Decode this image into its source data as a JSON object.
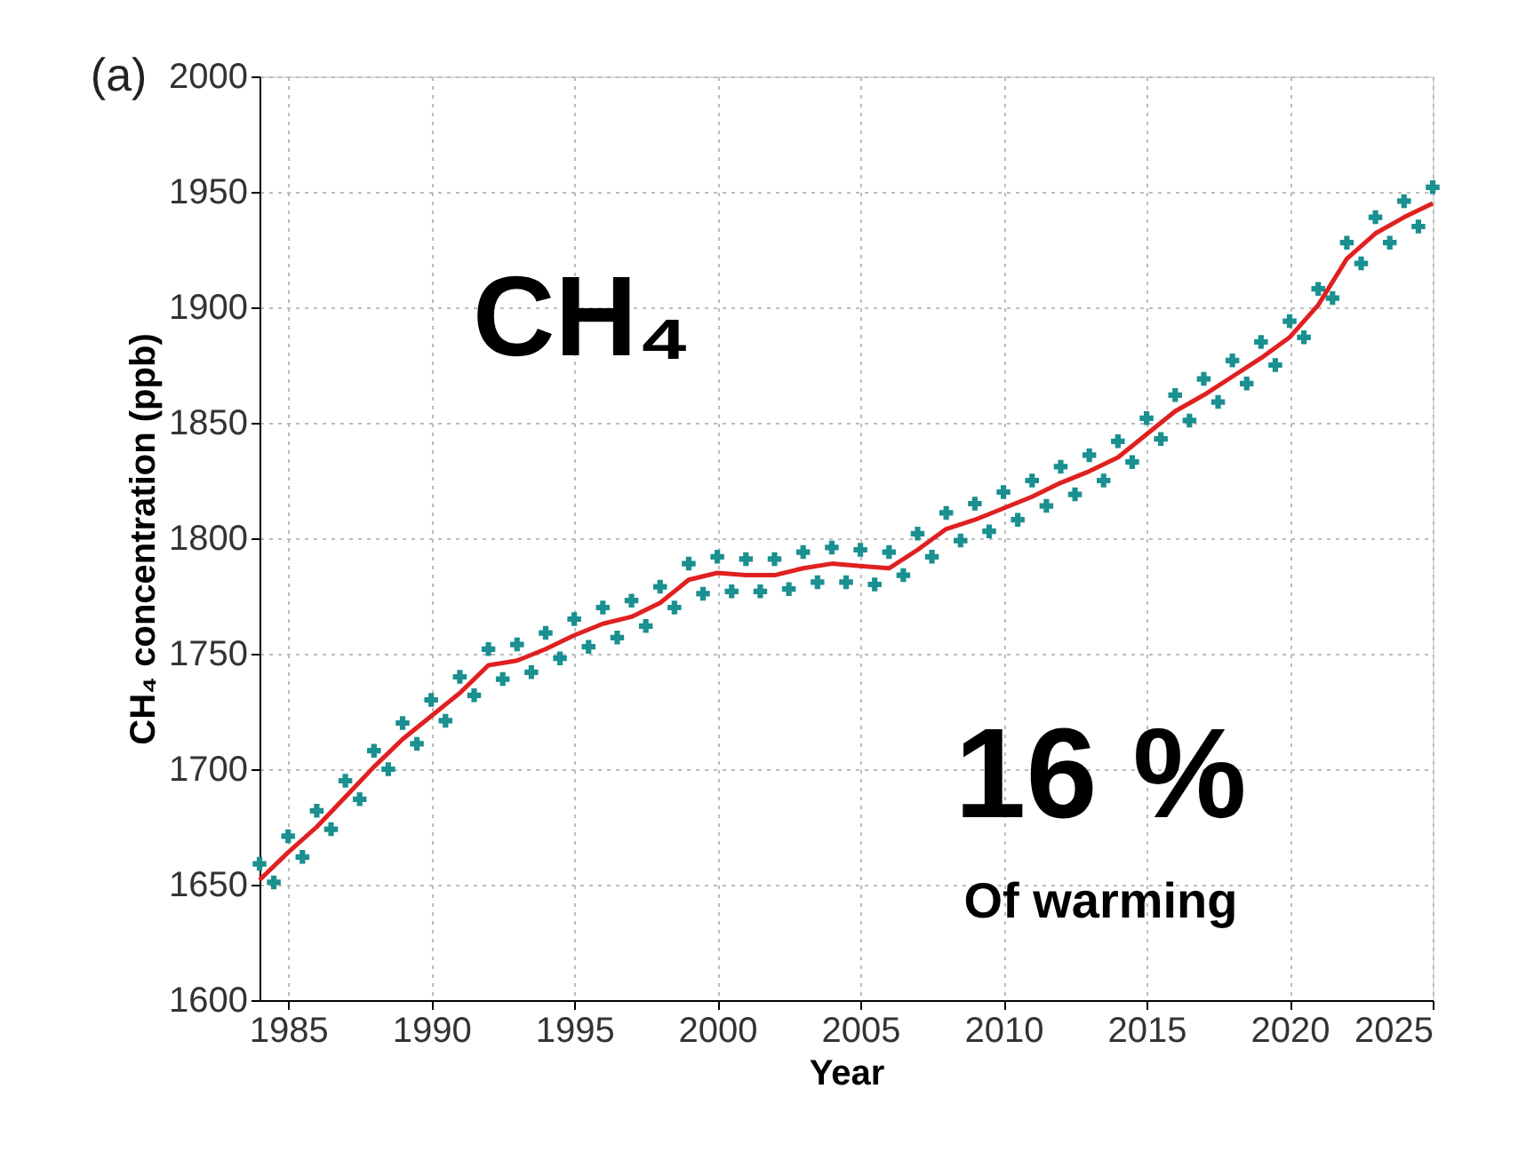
{
  "chart_data": {
    "type": "line",
    "xlabel": "Year",
    "ylabel": "CH₄ concentration (ppb)",
    "annotations": [
      "(a)",
      "CH₄",
      "16 %",
      "Of warming"
    ],
    "xlim": [
      1984,
      2025
    ],
    "xticks": [
      1985,
      1990,
      1995,
      2000,
      2005,
      2010,
      2015,
      2020,
      2025
    ],
    "ylim": [
      1600,
      2000
    ],
    "yticks": [
      1600,
      1650,
      1700,
      1750,
      1800,
      1850,
      1900,
      1950,
      2000
    ],
    "grid": true,
    "series": [
      {
        "type": "scatter",
        "marker": "cross",
        "color": "#1a9090",
        "x": [
          1984,
          1984.5,
          1985,
          1985.5,
          1986,
          1986.5,
          1987,
          1987.5,
          1988,
          1988.5,
          1989,
          1989.5,
          1990,
          1990.5,
          1991,
          1991.5,
          1992,
          1992.5,
          1993,
          1993.5,
          1994,
          1994.5,
          1995,
          1995.5,
          1996,
          1996.5,
          1997,
          1997.5,
          1998,
          1998.5,
          1999,
          1999.5,
          2000,
          2000.5,
          2001,
          2001.5,
          2002,
          2002.5,
          2003,
          2003.5,
          2004,
          2004.5,
          2005,
          2005.5,
          2006,
          2006.5,
          2007,
          2007.5,
          2008,
          2008.5,
          2009,
          2009.5,
          2010,
          2010.5,
          2011,
          2011.5,
          2012,
          2012.5,
          2013,
          2013.5,
          2014,
          2014.5,
          2015,
          2015.5,
          2016,
          2016.5,
          2017,
          2017.5,
          2018,
          2018.5,
          2019,
          2019.5,
          2020,
          2020.5,
          2021,
          2021.5,
          2022,
          2022.5,
          2023,
          2023.5,
          2024,
          2024.5,
          2025
        ],
        "values": [
          1659,
          1651,
          1671,
          1662,
          1682,
          1674,
          1695,
          1687,
          1708,
          1700,
          1720,
          1711,
          1730,
          1721,
          1740,
          1732,
          1752,
          1739,
          1754,
          1742,
          1759,
          1748,
          1765,
          1753,
          1770,
          1757,
          1773,
          1762,
          1779,
          1770,
          1789,
          1776,
          1792,
          1777,
          1791,
          1777,
          1791,
          1778,
          1794,
          1781,
          1796,
          1781,
          1795,
          1780,
          1794,
          1784,
          1802,
          1792,
          1811,
          1799,
          1815,
          1803,
          1820,
          1808,
          1825,
          1814,
          1831,
          1819,
          1836,
          1825,
          1842,
          1833,
          1852,
          1843,
          1862,
          1851,
          1869,
          1859,
          1877,
          1867,
          1885,
          1875,
          1894,
          1887,
          1908,
          1904,
          1928,
          1919,
          1939,
          1928,
          1946,
          1935,
          1952
        ]
      },
      {
        "type": "line",
        "marker": "none",
        "line_style": "solid",
        "color": "#e02020",
        "x": [
          1984,
          1985,
          1986,
          1987,
          1988,
          1989,
          1990,
          1991,
          1992,
          1993,
          1994,
          1995,
          1996,
          1997,
          1998,
          1999,
          2000,
          2001,
          2002,
          2003,
          2004,
          2005,
          2006,
          2007,
          2008,
          2009,
          2010,
          2011,
          2012,
          2013,
          2014,
          2015,
          2016,
          2017,
          2018,
          2019,
          2020,
          2021,
          2022,
          2023,
          2024,
          2025
        ],
        "values": [
          1652,
          1664,
          1675,
          1688,
          1701,
          1713,
          1723,
          1733,
          1745,
          1747,
          1752,
          1758,
          1763,
          1766,
          1772,
          1782,
          1785,
          1784,
          1784,
          1787,
          1789,
          1788,
          1787,
          1795,
          1804,
          1808,
          1813,
          1818,
          1824,
          1829,
          1835,
          1845,
          1855,
          1862,
          1870,
          1878,
          1887,
          1901,
          1921,
          1932,
          1939,
          1945
        ]
      }
    ]
  }
}
